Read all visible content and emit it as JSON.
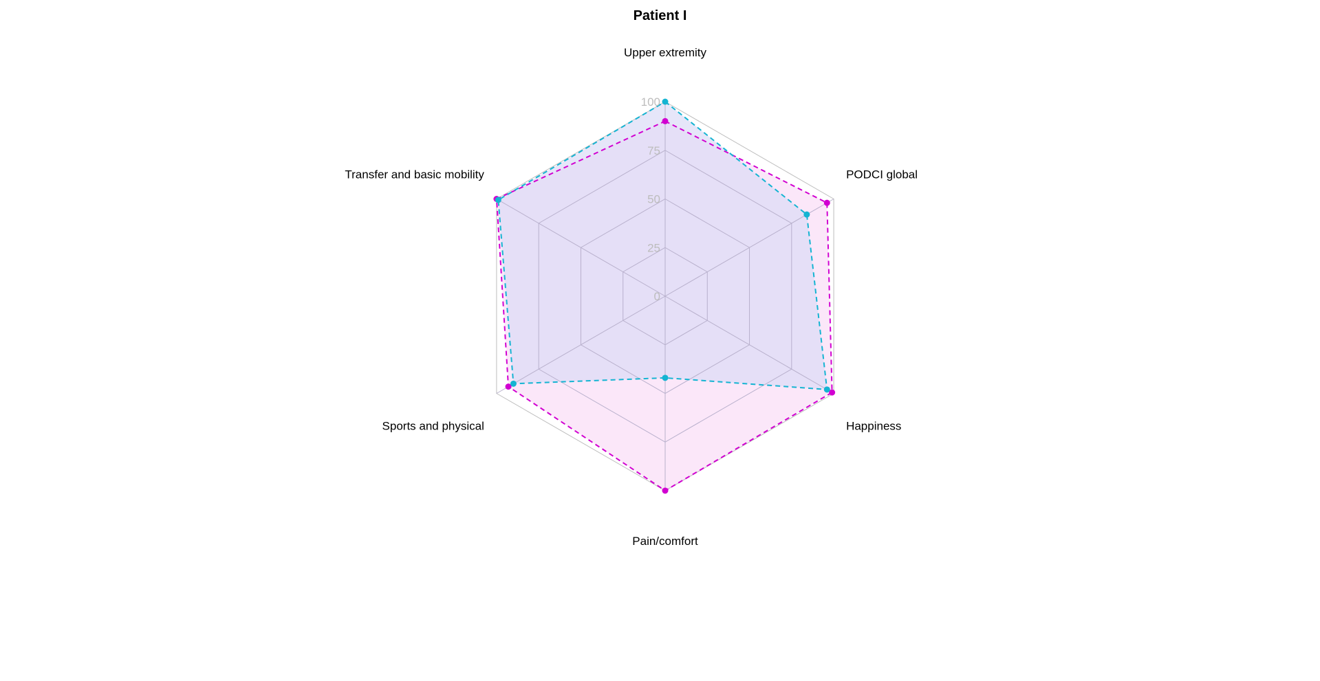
{
  "chart_data": {
    "type": "radar",
    "title": "Patient I",
    "axes": [
      "Upper extremity",
      "PODCI global",
      "Happiness",
      "Pain/comfort",
      "Sports and physical",
      "Transfer and basic mobility"
    ],
    "ticks": [
      "0",
      "25",
      "50",
      "75",
      "100"
    ],
    "range": [
      0,
      100
    ],
    "grid": true,
    "series": [
      {
        "color": "#d100d1",
        "fill": "#f9ddf7",
        "line_style": "dashed",
        "values": [
          90,
          96,
          99,
          100,
          93,
          100
        ]
      },
      {
        "color": "#14b4d2",
        "fill": "#dcdcf6",
        "line_style": "dashed",
        "values": [
          100,
          84,
          96,
          42,
          90,
          99
        ]
      }
    ]
  }
}
